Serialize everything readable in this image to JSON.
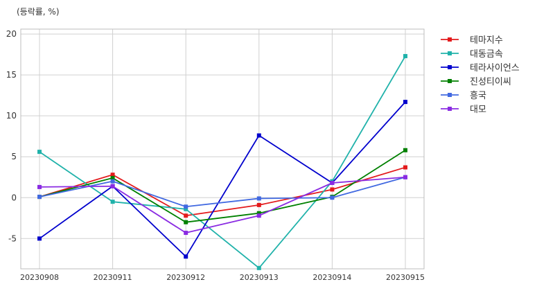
{
  "chart_data": {
    "type": "line",
    "unit_label": "(등락률, %)",
    "categories": [
      "20230908",
      "20230911",
      "20230912",
      "20230913",
      "20230914",
      "20230915"
    ],
    "ylim": [
      -8.7,
      20.6
    ],
    "yticks": [
      20,
      15,
      10,
      5,
      0,
      -5
    ],
    "grid": true,
    "legend_position": "right-top-outside",
    "series": [
      {
        "name": "테마지수",
        "color": "#e31a1c",
        "values": [
          0.1,
          2.8,
          -2.2,
          -0.9,
          1.0,
          3.7
        ]
      },
      {
        "name": "대동금속",
        "color": "#20b2aa",
        "values": [
          5.6,
          -0.5,
          -1.4,
          -8.6,
          2.0,
          17.3
        ]
      },
      {
        "name": "테라사이언스",
        "color": "#0000cd",
        "values": [
          -5.0,
          1.4,
          -7.2,
          7.6,
          1.8,
          11.7
        ]
      },
      {
        "name": "진성티이씨",
        "color": "#008000",
        "values": [
          0.1,
          2.4,
          -3.0,
          -1.9,
          0.1,
          5.8
        ]
      },
      {
        "name": "흥국",
        "color": "#4169e1",
        "values": [
          0.1,
          2.0,
          -1.1,
          -0.1,
          0.0,
          2.5
        ]
      },
      {
        "name": "대모",
        "color": "#8a2be2",
        "values": [
          1.3,
          1.4,
          -4.3,
          -2.2,
          1.8,
          2.5
        ]
      }
    ]
  }
}
